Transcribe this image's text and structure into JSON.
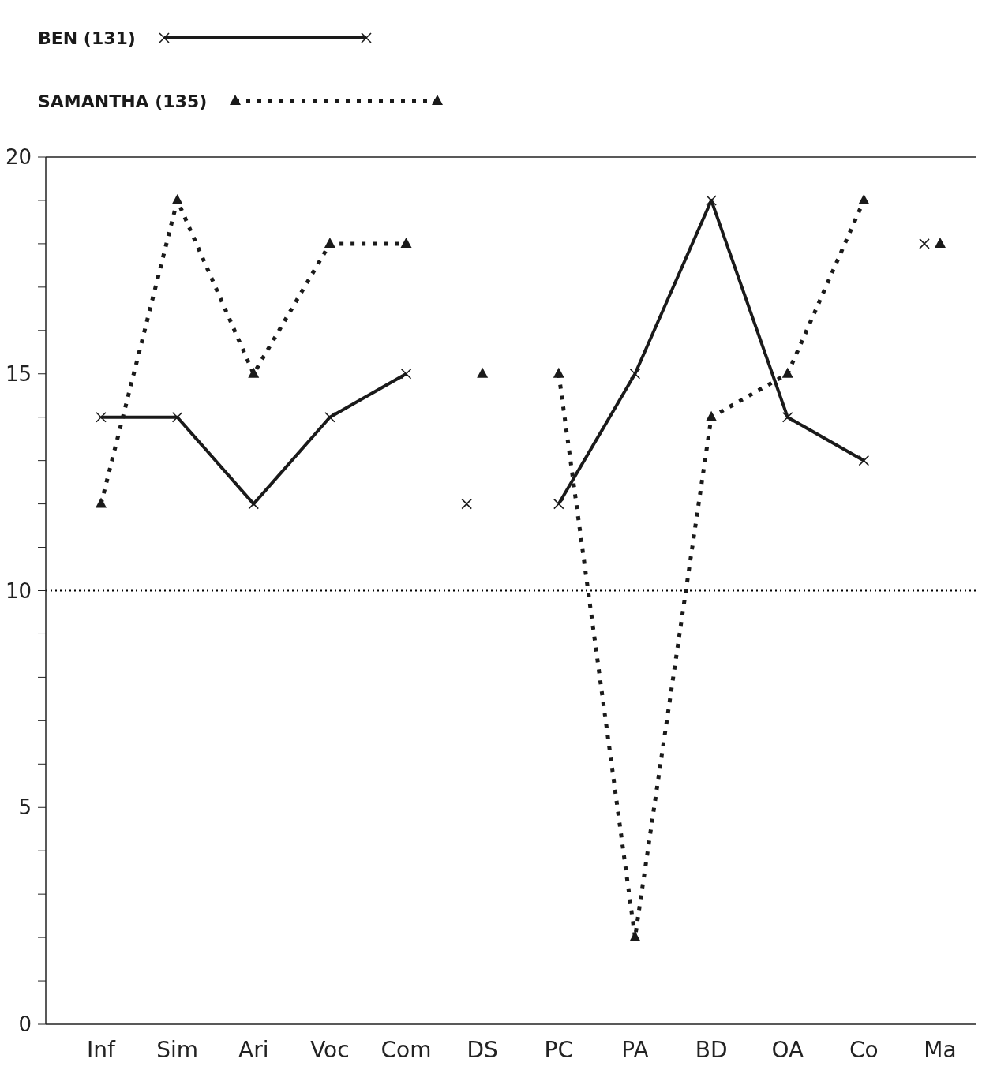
{
  "chart_data": {
    "type": "line",
    "categories": [
      "Inf",
      "Sim",
      "Ari",
      "Voc",
      "Com",
      "DS",
      "PC",
      "PA",
      "BD",
      "OA",
      "Co",
      "Ma"
    ],
    "series": [
      {
        "name": "BEN (131)",
        "color": "#1a1a1a",
        "line_style": "solid",
        "marker": "cross",
        "values": [
          14,
          14,
          12,
          14,
          15,
          null,
          12,
          15,
          19,
          14,
          13,
          null
        ]
      },
      {
        "name": "SAMANTHA (135)",
        "color": "#1a1a1a",
        "line_style": "dotted",
        "marker": "triangle",
        "values": [
          12,
          19,
          15,
          18,
          18,
          null,
          15,
          2,
          14,
          15,
          19,
          null
        ]
      },
      {
        "type": "scatter",
        "color": "#1a1a1a",
        "marker": "cross",
        "values": [
          null,
          null,
          null,
          null,
          null,
          12,
          null,
          null,
          null,
          null,
          null,
          18
        ]
      },
      {
        "type": "scatter",
        "color": "#1a1a1a",
        "marker": "triangle",
        "values": [
          null,
          null,
          null,
          null,
          null,
          15,
          null,
          null,
          null,
          null,
          null,
          18
        ]
      }
    ],
    "ylim": [
      0,
      20
    ],
    "yticks": [
      0,
      {
        "value": 1,
        "label": null
      },
      {
        "value": 2,
        "label": null
      },
      {
        "value": 3,
        "label": null
      },
      {
        "value": 4,
        "label": null
      },
      5,
      {
        "value": 6,
        "label": null
      },
      {
        "value": 7,
        "label": null
      },
      {
        "value": 8,
        "label": null
      },
      {
        "value": 9,
        "label": null
      },
      10,
      {
        "value": 11,
        "label": null
      },
      {
        "value": 12,
        "label": null
      },
      {
        "value": 13,
        "label": null
      },
      {
        "value": 14,
        "label": null
      },
      15,
      {
        "value": 16,
        "label": null
      },
      {
        "value": 17,
        "label": null
      },
      {
        "value": 18,
        "label": null
      },
      {
        "value": 19,
        "label": null
      },
      20
    ],
    "ref_lines": [
      {
        "axis": "y",
        "value": 10,
        "line_style": "dotted",
        "color": "#000000"
      }
    ],
    "legend": "top left",
    "grid": false
  }
}
